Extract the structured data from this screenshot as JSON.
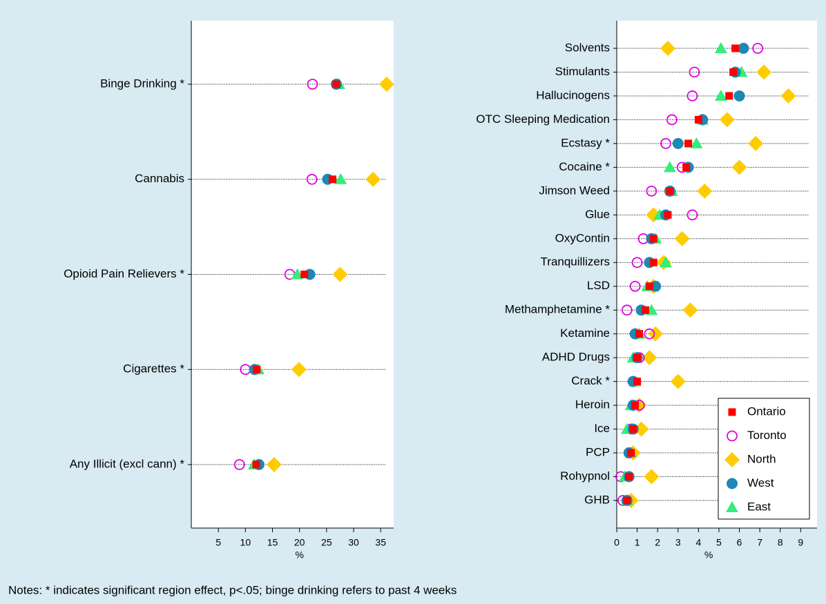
{
  "chart_data": [
    {
      "type": "dot",
      "categories": [
        "Binge Drinking *",
        "Cannabis",
        "Opioid Pain Relievers *",
        "Cigarettes *",
        "Any Illicit (excl cann) *"
      ],
      "series": [
        {
          "color": "#ff0000",
          "marker": "square",
          "values": [
            26.8,
            26.1,
            20.9,
            12.1,
            12.0
          ]
        },
        {
          "color": "#e000e0",
          "marker": "circle-open",
          "values": [
            22.4,
            22.3,
            18.2,
            10.0,
            8.9
          ]
        },
        {
          "color": "#ffcc00",
          "marker": "diamond",
          "values": [
            36.1,
            33.6,
            27.5,
            19.9,
            15.3
          ]
        },
        {
          "color": "#1f87b4",
          "marker": "circle",
          "values": [
            26.8,
            25.2,
            21.9,
            11.7,
            12.5
          ]
        },
        {
          "color": "#33ee77",
          "marker": "triangle",
          "values": [
            27.3,
            27.6,
            19.6,
            12.4,
            11.6
          ]
        }
      ],
      "xlabel": "%",
      "xlim": [
        0,
        37.4
      ],
      "xticks": [
        5,
        10,
        15,
        20,
        25,
        30,
        35
      ]
    },
    {
      "type": "dot",
      "categories": [
        "Solvents",
        "Stimulants",
        "Hallucinogens",
        "OTC Sleeping Medication",
        "Ecstasy *",
        "Cocaine *",
        "Jimson Weed",
        "Glue",
        "OxyContin",
        "Tranquillizers",
        "LSD",
        "Methamphetamine *",
        "Ketamine",
        "ADHD Drugs",
        "Crack *",
        "Heroin",
        "Ice",
        "PCP",
        "Rohypnol",
        "GHB"
      ],
      "series": [
        {
          "name": "Ontario",
          "color": "#ff0000",
          "marker": "square",
          "values": [
            5.8,
            5.7,
            5.5,
            4.0,
            3.5,
            3.4,
            2.6,
            2.5,
            1.8,
            1.8,
            1.6,
            1.4,
            1.1,
            1.0,
            1.0,
            0.9,
            0.8,
            0.7,
            0.6,
            0.5
          ]
        },
        {
          "name": "Toronto",
          "color": "#e000e0",
          "marker": "circle-open",
          "values": [
            6.9,
            3.8,
            3.7,
            2.7,
            2.4,
            3.2,
            1.7,
            3.7,
            1.3,
            1.0,
            0.9,
            0.5,
            1.6,
            1.1,
            0.8,
            1.1,
            0.7,
            0.6,
            0.2,
            0.3
          ]
        },
        {
          "name": "North",
          "color": "#ffcc00",
          "marker": "diamond",
          "values": [
            2.5,
            7.2,
            8.4,
            5.4,
            6.8,
            6.0,
            4.3,
            1.8,
            3.2,
            2.3,
            1.8,
            3.6,
            1.9,
            1.6,
            3.0,
            1.1,
            1.2,
            0.8,
            1.7,
            0.7
          ]
        },
        {
          "name": "West",
          "color": "#1f87b4",
          "marker": "circle",
          "values": [
            6.2,
            5.8,
            6.0,
            4.2,
            3.0,
            3.5,
            2.6,
            2.4,
            1.7,
            1.6,
            1.9,
            1.2,
            0.9,
            1.0,
            0.8,
            0.8,
            0.8,
            0.6,
            0.6,
            0.5
          ]
        },
        {
          "name": "East",
          "color": "#33ee77",
          "marker": "triangle",
          "values": [
            5.1,
            6.1,
            5.1,
            4.2,
            3.9,
            2.6,
            2.7,
            2.1,
            1.9,
            2.4,
            1.5,
            1.7,
            1.1,
            0.8,
            0.9,
            0.7,
            0.5,
            0.7,
            0.4,
            0.5
          ]
        }
      ],
      "xlabel": "%",
      "xlim": [
        0,
        9.8
      ],
      "xticks": [
        0,
        1,
        2,
        3,
        4,
        5,
        6,
        7,
        8,
        9
      ],
      "legend": "bottom-right"
    }
  ],
  "note": "Notes: * indicates significant region effect, p<.05; binge drinking refers to past 4 weeks"
}
